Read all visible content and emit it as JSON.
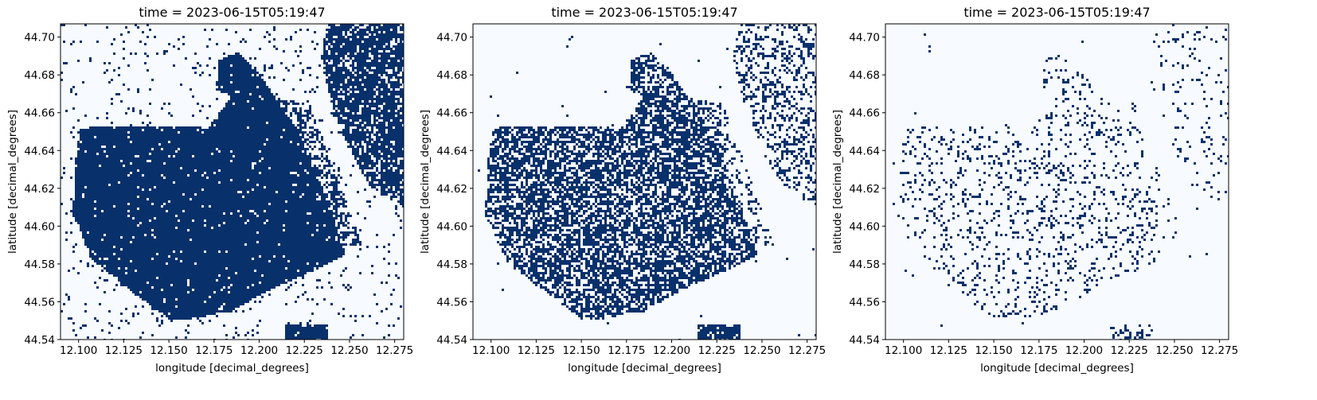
{
  "colors": {
    "water": "#08306b",
    "land": "#f7fbff",
    "frame": "#000000"
  },
  "chart_data": [
    {
      "type": "heatmap",
      "title": "time = 2023-06-15T05:19:47",
      "xlabel": "longitude [decimal_degrees]",
      "ylabel": "latitude [decimal_degrees]",
      "xlim": [
        12.09,
        12.28
      ],
      "ylim": [
        44.54,
        44.707
      ],
      "xticks": [
        "12.100",
        "12.125",
        "12.150",
        "12.175",
        "12.200",
        "12.225",
        "12.250",
        "12.275"
      ],
      "yticks": [
        "44.54",
        "44.56",
        "44.58",
        "44.60",
        "44.62",
        "44.64",
        "44.66",
        "44.68",
        "44.70"
      ],
      "colormap": "Blues",
      "coverage_level": 0.96
    },
    {
      "type": "heatmap",
      "title": "time = 2023-06-15T05:19:47",
      "xlabel": "longitude [decimal_degrees]",
      "ylabel": "latitude [decimal_degrees]",
      "xlim": [
        12.09,
        12.28
      ],
      "ylim": [
        44.54,
        44.707
      ],
      "xticks": [
        "12.100",
        "12.125",
        "12.150",
        "12.175",
        "12.200",
        "12.225",
        "12.250",
        "12.275"
      ],
      "yticks": [
        "44.54",
        "44.56",
        "44.58",
        "44.60",
        "44.62",
        "44.64",
        "44.66",
        "44.68",
        "44.70"
      ],
      "colormap": "Blues",
      "coverage_level": 0.62
    },
    {
      "type": "heatmap",
      "title": "time = 2023-06-15T05:19:47",
      "xlabel": "longitude [decimal_degrees]",
      "ylabel": "latitude [decimal_degrees]",
      "xlim": [
        12.09,
        12.28
      ],
      "ylim": [
        44.54,
        44.707
      ],
      "xticks": [
        "12.100",
        "12.125",
        "12.150",
        "12.175",
        "12.200",
        "12.225",
        "12.250",
        "12.275"
      ],
      "yticks": [
        "44.54",
        "44.56",
        "44.58",
        "44.60",
        "44.62",
        "44.64",
        "44.66",
        "44.68",
        "44.70"
      ],
      "colormap": "Blues",
      "coverage_level": 0.14
    }
  ]
}
